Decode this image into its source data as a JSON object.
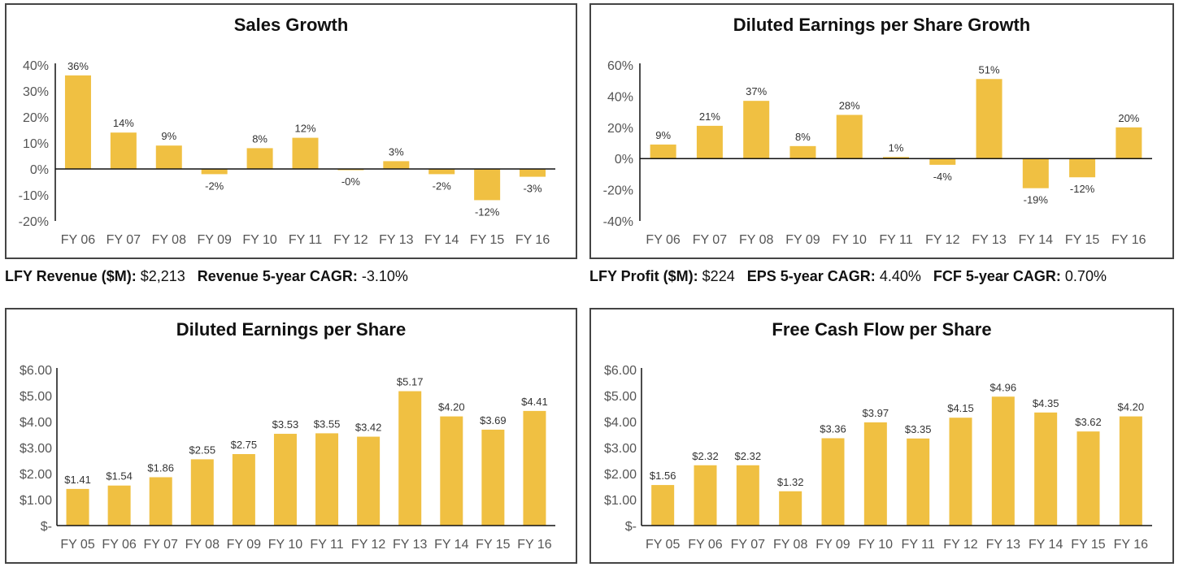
{
  "chart_data": [
    {
      "id": "sales-growth",
      "type": "bar",
      "title": "Sales Growth",
      "categories": [
        "FY 06",
        "FY 07",
        "FY 08",
        "FY 09",
        "FY 10",
        "FY 11",
        "FY 12",
        "FY 13",
        "FY 14",
        "FY 15",
        "FY 16"
      ],
      "values": [
        36,
        14,
        9,
        -2,
        8,
        12,
        -0.3,
        3,
        -2,
        -12,
        -3
      ],
      "labels": [
        "36%",
        "14%",
        "9%",
        "-2%",
        "8%",
        "12%",
        "-0%",
        "3%",
        "-2%",
        "-12%",
        "-3%"
      ],
      "yticks": [
        {
          "v": 40,
          "label": "40%"
        },
        {
          "v": 30,
          "label": "30%"
        },
        {
          "v": 20,
          "label": "20%"
        },
        {
          "v": 10,
          "label": "10%"
        },
        {
          "v": 0,
          "label": "0%"
        },
        {
          "v": -10,
          "label": "-10%"
        },
        {
          "v": -20,
          "label": "-20%"
        }
      ],
      "ylim": [
        -20,
        40
      ],
      "color": "#f0c042"
    },
    {
      "id": "eps-growth",
      "type": "bar",
      "title": "Diluted Earnings per Share Growth",
      "categories": [
        "FY 06",
        "FY 07",
        "FY 08",
        "FY 09",
        "FY 10",
        "FY 11",
        "FY 12",
        "FY 13",
        "FY 14",
        "FY 15",
        "FY 16"
      ],
      "values": [
        9,
        21,
        37,
        8,
        28,
        1,
        -4,
        51,
        -19,
        -12,
        20
      ],
      "labels": [
        "9%",
        "21%",
        "37%",
        "8%",
        "28%",
        "1%",
        "-4%",
        "51%",
        "-19%",
        "-12%",
        "20%"
      ],
      "yticks": [
        {
          "v": 60,
          "label": "60%"
        },
        {
          "v": 40,
          "label": "40%"
        },
        {
          "v": 20,
          "label": "20%"
        },
        {
          "v": 0,
          "label": "0%"
        },
        {
          "v": -20,
          "label": "-20%"
        },
        {
          "v": -40,
          "label": "-40%"
        }
      ],
      "ylim": [
        -40,
        60
      ],
      "color": "#f0c042"
    },
    {
      "id": "diluted-eps",
      "type": "bar",
      "title": "Diluted Earnings per Share",
      "categories": [
        "FY 05",
        "FY 06",
        "FY 07",
        "FY 08",
        "FY 09",
        "FY 10",
        "FY 11",
        "FY 12",
        "FY 13",
        "FY 14",
        "FY 15",
        "FY 16"
      ],
      "values": [
        1.41,
        1.54,
        1.86,
        2.55,
        2.75,
        3.53,
        3.55,
        3.42,
        5.17,
        4.2,
        3.69,
        4.41
      ],
      "labels": [
        "$1.41",
        "$1.54",
        "$1.86",
        "$2.55",
        "$2.75",
        "$3.53",
        "$3.55",
        "$3.42",
        "$5.17",
        "$4.20",
        "$3.69",
        "$4.41"
      ],
      "yticks": [
        {
          "v": 6,
          "label": "$6.00"
        },
        {
          "v": 5,
          "label": "$5.00"
        },
        {
          "v": 4,
          "label": "$4.00"
        },
        {
          "v": 3,
          "label": "$3.00"
        },
        {
          "v": 2,
          "label": "$2.00"
        },
        {
          "v": 1,
          "label": "$1.00"
        },
        {
          "v": 0,
          "label": "$-"
        }
      ],
      "ylim": [
        0,
        6
      ],
      "color": "#f0c042"
    },
    {
      "id": "fcf-per-share",
      "type": "bar",
      "title": "Free Cash Flow per Share",
      "categories": [
        "FY 05",
        "FY 06",
        "FY 07",
        "FY 08",
        "FY 09",
        "FY 10",
        "FY 11",
        "FY 12",
        "FY 13",
        "FY 14",
        "FY 15",
        "FY 16"
      ],
      "values": [
        1.56,
        2.32,
        2.32,
        1.32,
        3.36,
        3.97,
        3.35,
        4.15,
        4.96,
        4.35,
        3.62,
        4.2
      ],
      "labels": [
        "$1.56",
        "$2.32",
        "$2.32",
        "$1.32",
        "$3.36",
        "$3.97",
        "$3.35",
        "$4.15",
        "$4.96",
        "$4.35",
        "$3.62",
        "$4.20"
      ],
      "yticks": [
        {
          "v": 6,
          "label": "$6.00"
        },
        {
          "v": 5,
          "label": "$5.00"
        },
        {
          "v": 4,
          "label": "$4.00"
        },
        {
          "v": 3,
          "label": "$3.00"
        },
        {
          "v": 2,
          "label": "$2.00"
        },
        {
          "v": 1,
          "label": "$1.00"
        },
        {
          "v": 0,
          "label": "$-"
        }
      ],
      "ylim": [
        0,
        6
      ],
      "color": "#f0c042"
    }
  ],
  "stats": {
    "left": {
      "revenue_label": "LFY Revenue ($M):",
      "revenue_value": "$2,213",
      "cagr_label": "Revenue 5-year CAGR:",
      "cagr_value": "-3.10%"
    },
    "right": {
      "profit_label": "LFY Profit ($M):",
      "profit_value": "$224",
      "eps_cagr_label": "EPS 5-year CAGR:",
      "eps_cagr_value": "4.40%",
      "fcf_cagr_label": "FCF 5-year CAGR:",
      "fcf_cagr_value": "0.70%"
    }
  }
}
